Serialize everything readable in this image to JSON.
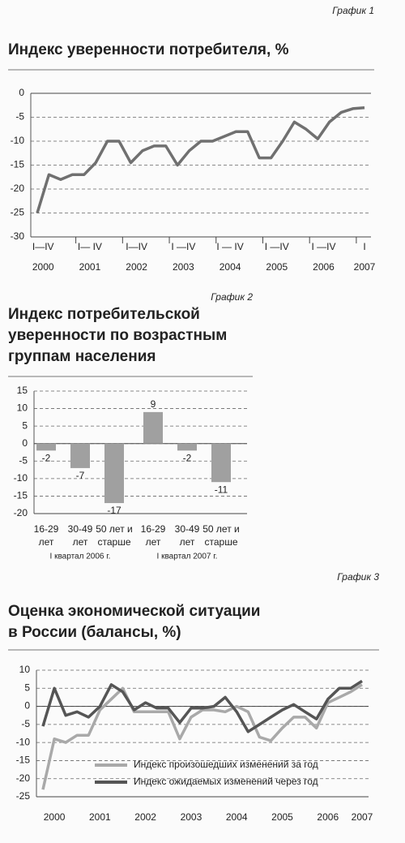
{
  "chart_data": [
    {
      "type": "line",
      "caption": "График 1",
      "title": [
        "Индекс уверенности потребителя, %"
      ],
      "values": [
        -25,
        -17,
        -18,
        -17,
        -17,
        -14.5,
        -10,
        -10,
        -14.5,
        -12,
        -11,
        -11,
        -15,
        -12,
        -10,
        -10,
        -9,
        -8,
        -8,
        -13.5,
        -13.5,
        -10,
        -6,
        -7.5,
        -9.5,
        -6,
        -4,
        -3.2,
        -3
      ],
      "color": "#707070",
      "quarter_labels": [
        "I—IV",
        "I— IV",
        "I—IV",
        "I —IV",
        "I — IV",
        "I —IV",
        "I —IV",
        "I"
      ],
      "year_labels": [
        "2000",
        "2001",
        "2002",
        "2003",
        "2004",
        "2005",
        "2006",
        "2007"
      ],
      "ylim": [
        -30,
        0
      ],
      "yticks": [
        0,
        -5,
        -10,
        -15,
        -20,
        -25,
        -30
      ],
      "grid": true
    },
    {
      "type": "bar",
      "caption": "График 2",
      "title": [
        "Индекс потребительской",
        "уверенности по возрастным",
        "группам населения"
      ],
      "categories": [
        [
          "16-29",
          "лет"
        ],
        [
          "30-49",
          "лет"
        ],
        [
          "50 лет и",
          "старше"
        ],
        [
          "16-29",
          "лет"
        ],
        [
          "30-49",
          "лет"
        ],
        [
          "50 лет и",
          "старше"
        ]
      ],
      "group_labels": [
        "I квартал 2006 г.",
        "I квартал 2007 г."
      ],
      "values": [
        -2,
        -7,
        -17,
        9,
        -2,
        -11
      ],
      "color": "#a0a0a0",
      "ylim": [
        -20,
        15
      ],
      "yticks": [
        15,
        10,
        5,
        0,
        -5,
        -10,
        -15,
        -20
      ],
      "grid": true
    },
    {
      "type": "line",
      "caption": "График 3",
      "title": [
        "Оценка экономической ситуации",
        "в России (балансы, %)"
      ],
      "series": [
        {
          "name": "Индекс произошедших изменений за год",
          "color": "#a9a9a9",
          "values": [
            -23,
            -9,
            -10,
            -8,
            -8,
            -1,
            2,
            5,
            -1.5,
            -1.5,
            -1.5,
            -1.5,
            -9,
            -3,
            -1,
            -1,
            -1.5,
            0,
            -1.5,
            -8.5,
            -9.5,
            -6,
            -3,
            -3,
            -6,
            1,
            2.5,
            4,
            6
          ]
        },
        {
          "name": "Индекс ожидаемых изменений через год",
          "color": "#555555",
          "values": [
            -5.5,
            5,
            -2.5,
            -1.5,
            -3,
            0,
            6,
            4,
            -1,
            1,
            -0.5,
            -0.5,
            -4.5,
            -0.5,
            -0.5,
            0,
            2.5,
            -1.5,
            -7,
            -5,
            -3,
            -1,
            0.5,
            -1.5,
            -3.5,
            2,
            5,
            5,
            7
          ]
        }
      ],
      "year_labels": [
        "2000",
        "2001",
        "2002",
        "2003",
        "2004",
        "2005",
        "2006",
        "2007"
      ],
      "ylim": [
        -25,
        10
      ],
      "yticks": [
        10,
        5,
        0,
        -5,
        -10,
        -15,
        -20,
        -25
      ],
      "grid": true
    }
  ]
}
